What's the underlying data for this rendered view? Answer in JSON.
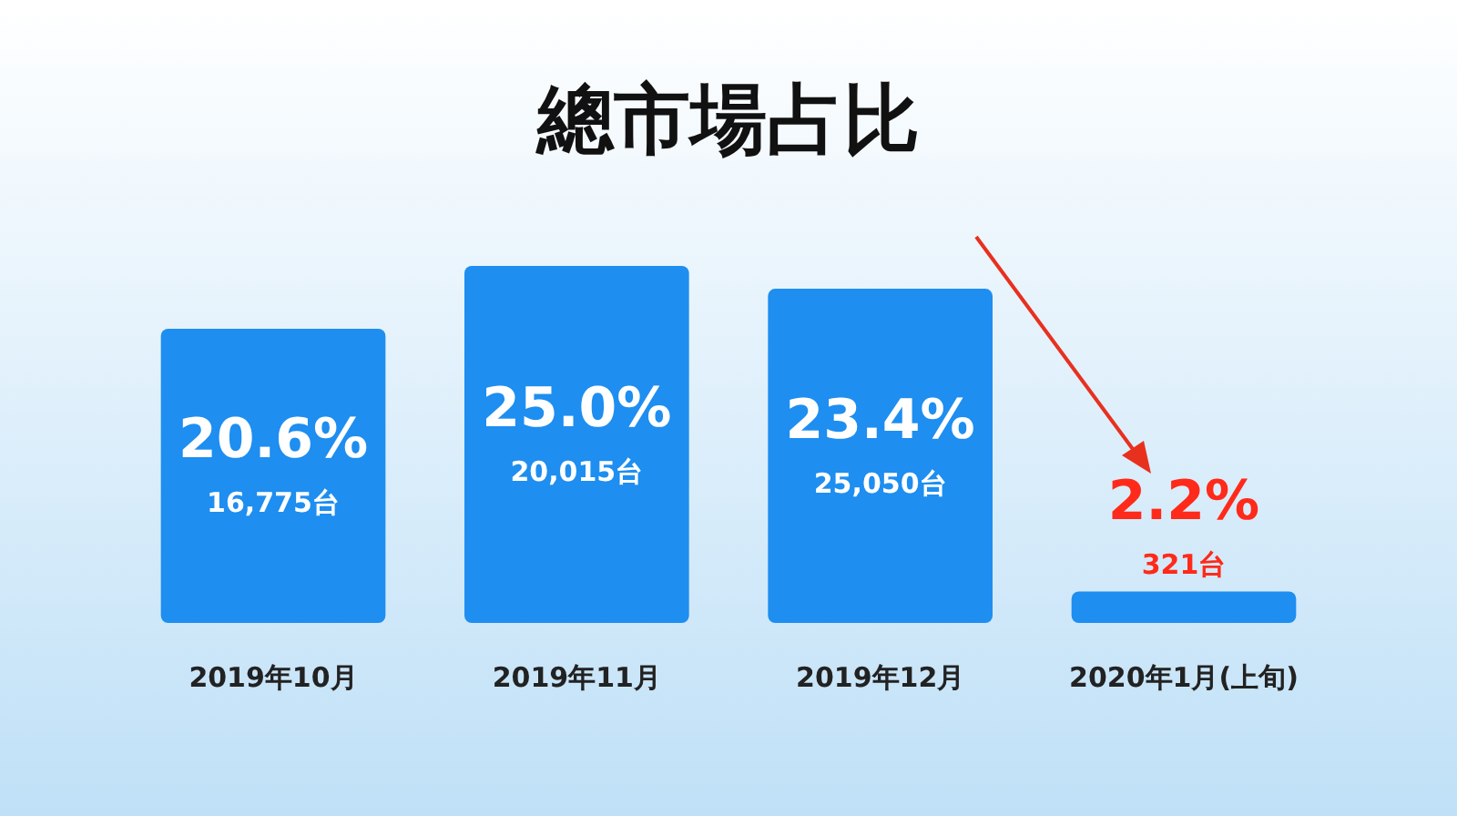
{
  "chart_data": {
    "type": "bar",
    "title": "總市場占比",
    "categories": [
      "2019年10月",
      "2019年11月",
      "2019年12月",
      "2020年1月(上旬)"
    ],
    "values": [
      20.6,
      25.0,
      23.4,
      2.2
    ],
    "colors": [
      "#1e8ef0",
      "#1e8ef0",
      "#1e8ef0",
      "#1e8ef0"
    ],
    "value_labels": [
      "20.6%\n16,775台",
      "25.0%\n20,015台",
      "23.4%\n25,050台",
      "2.2%\n321台"
    ],
    "grid": false
  }
}
